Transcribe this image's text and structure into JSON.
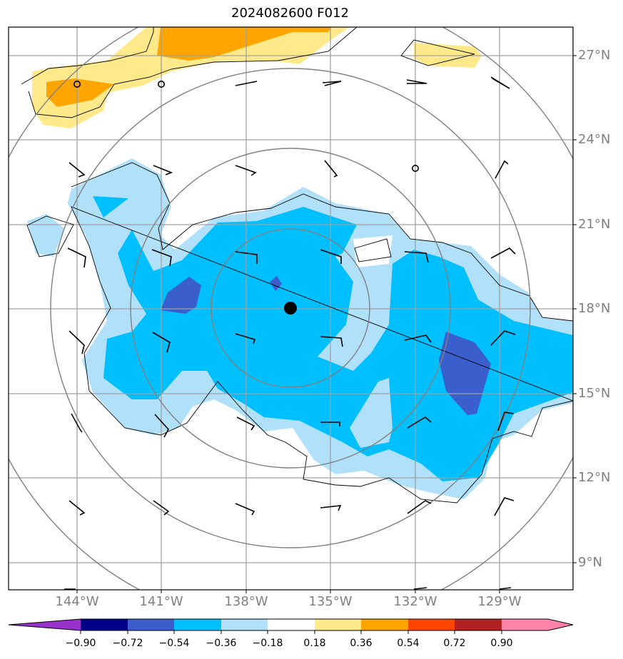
{
  "title": "2024082600 F012",
  "lat_labels": [
    "27°N",
    "24°N",
    "21°N",
    "18°N",
    "15°N",
    "12°N",
    "9°N"
  ],
  "lon_labels": [
    "144°W",
    "141°W",
    "138°W",
    "135°W",
    "132°W",
    "129°W"
  ],
  "colorbar": {
    "ticks": [
      "−0.90",
      "−0.72",
      "−0.54",
      "−0.36",
      "−0.18",
      "0.18",
      "0.36",
      "0.54",
      "0.72",
      "0.90"
    ],
    "colors": [
      "#9932cc",
      "#00008b",
      "#3a5fcd",
      "#00bfff",
      "#b0e0fa",
      "#ffffff",
      "#ffe98a",
      "#ffa500",
      "#ff4500",
      "#b22222",
      "#ff82ab"
    ]
  },
  "storm_center": {
    "lat": 18.0,
    "lon": -136.5
  }
}
